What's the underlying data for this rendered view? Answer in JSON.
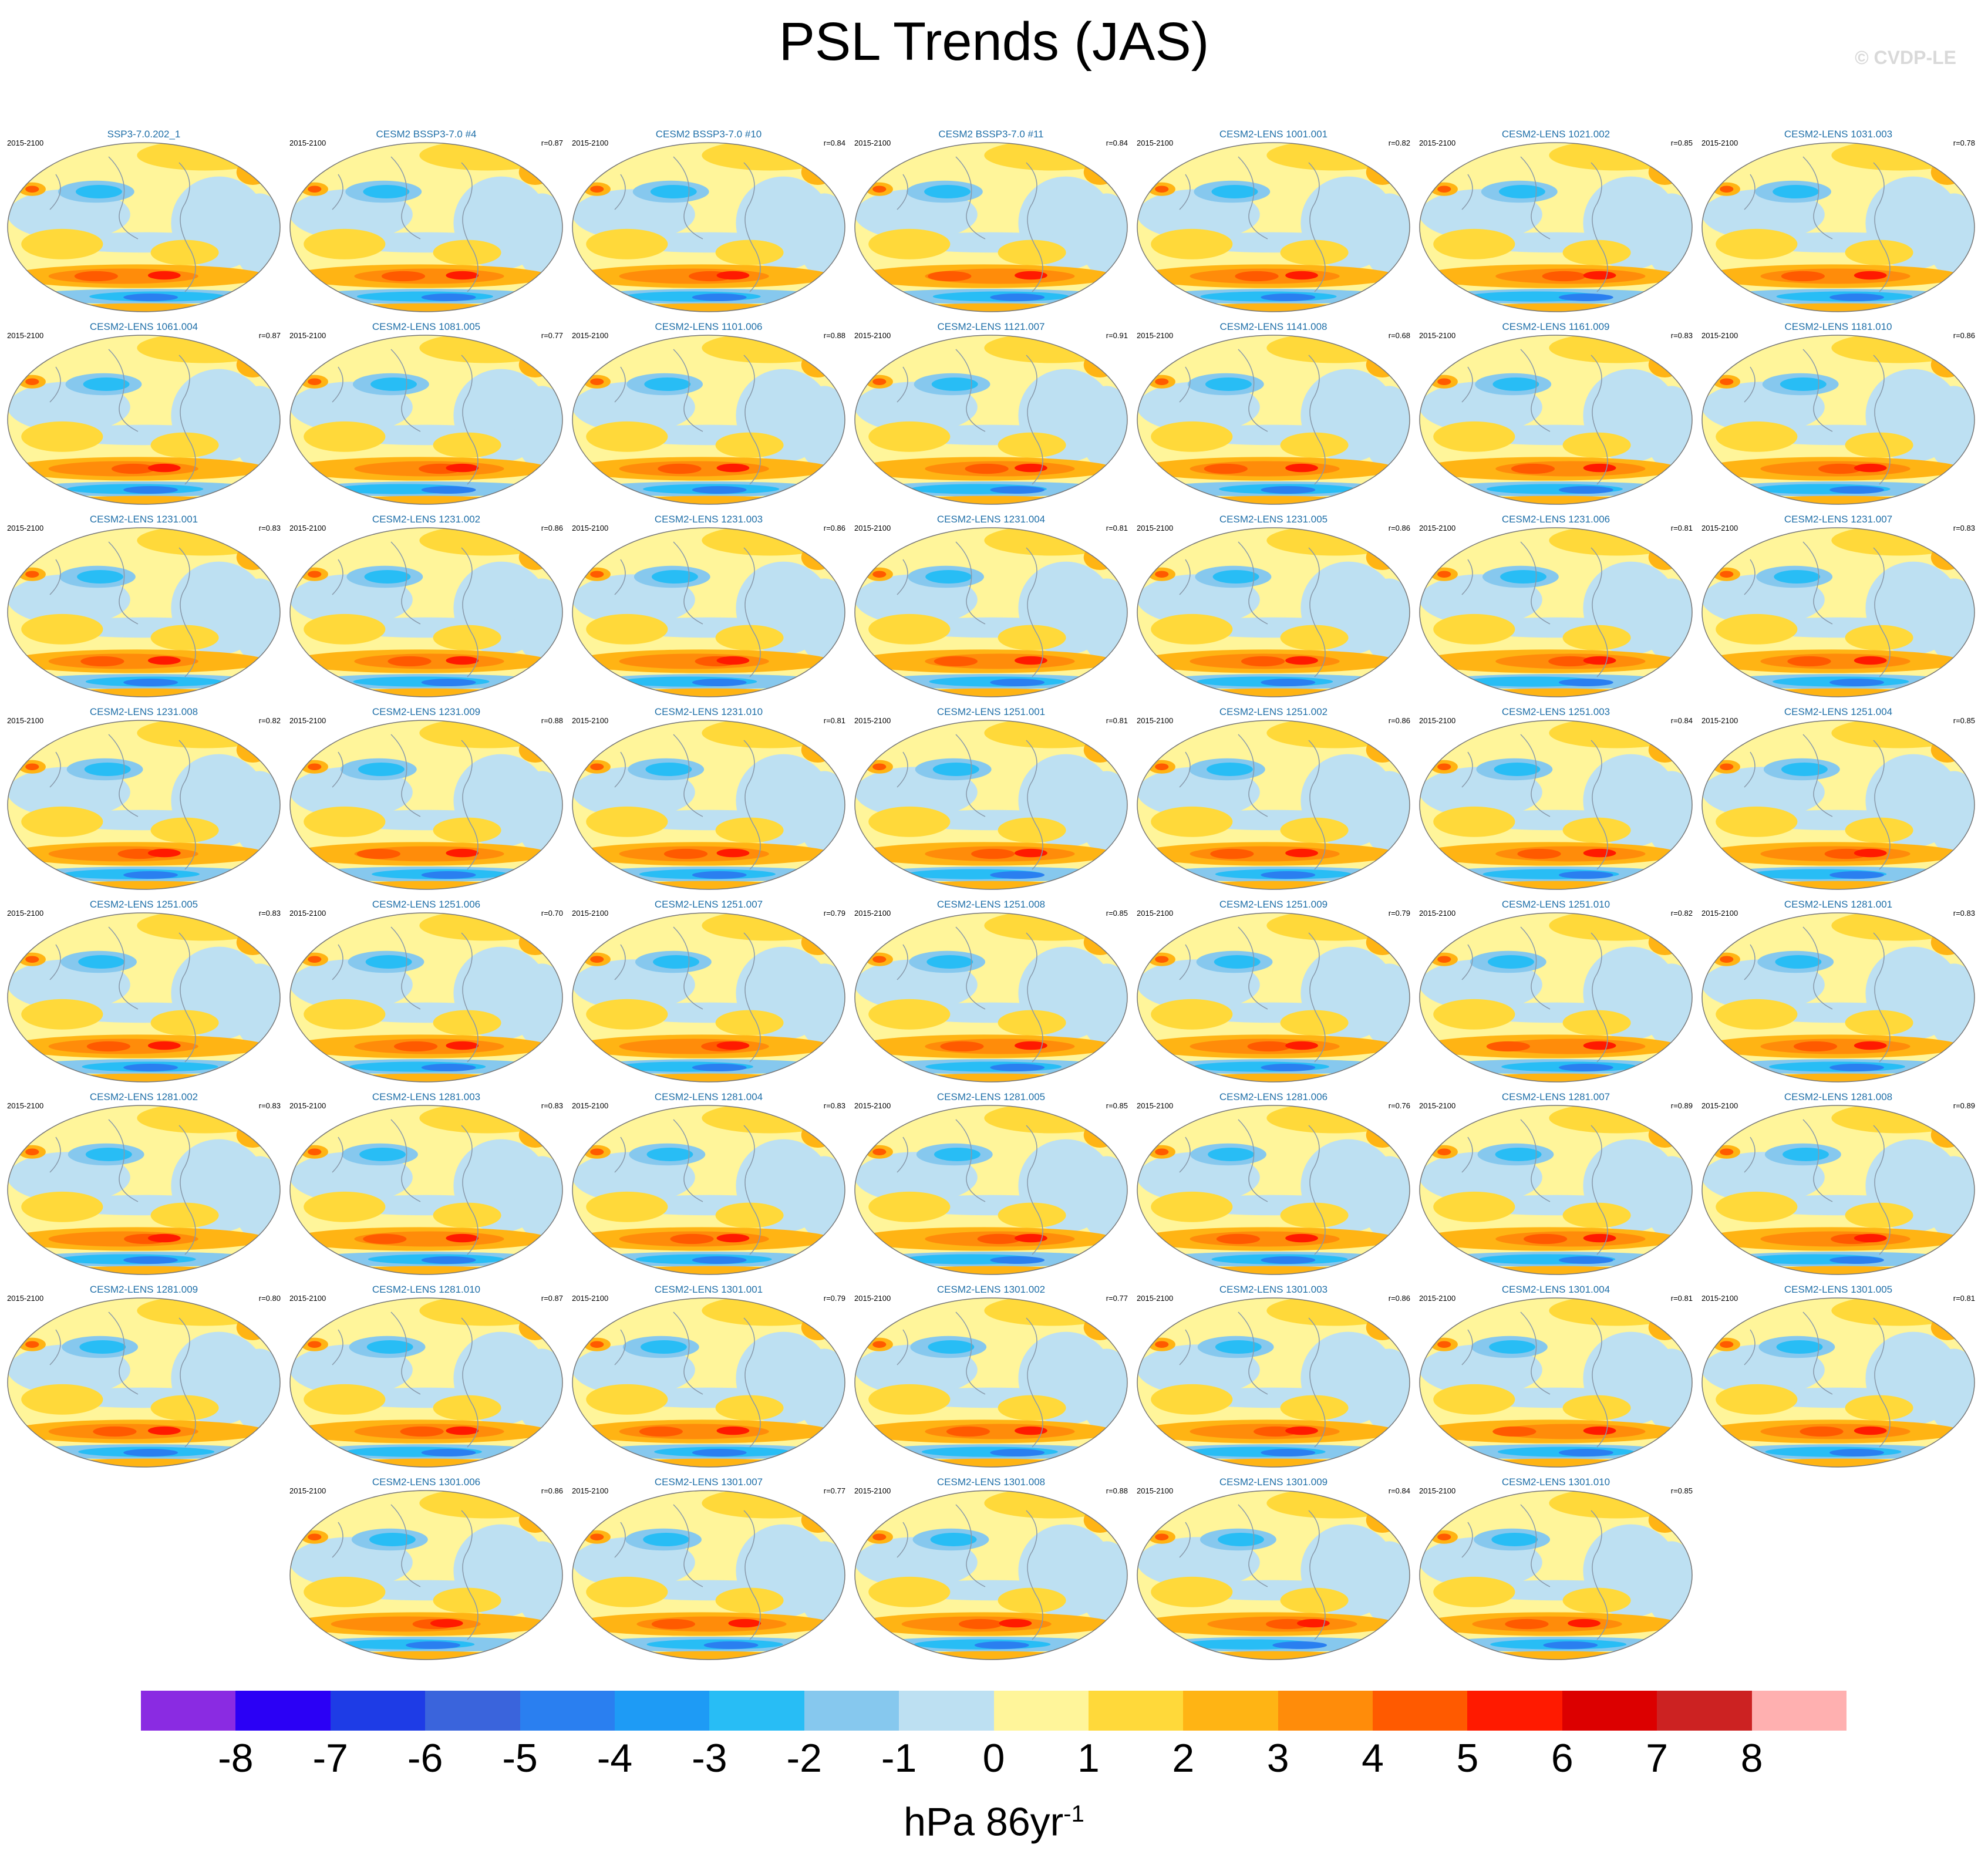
{
  "title": "PSL Trends (JAS)",
  "watermark": "© CVDP-LE",
  "chart_data": {
    "type": "heatmap",
    "title": "PSL Trends (JAS)",
    "period": "2015-2100",
    "panels": [
      {
        "title": "SSP3-7.0.202_1",
        "r": ""
      },
      {
        "title": "CESM2 BSSP3-7.0 #4",
        "r": "r=0.87"
      },
      {
        "title": "CESM2 BSSP3-7.0 #10",
        "r": "r=0.84"
      },
      {
        "title": "CESM2 BSSP3-7.0 #11",
        "r": "r=0.84"
      },
      {
        "title": "CESM2-LENS 1001.001",
        "r": "r=0.82"
      },
      {
        "title": "CESM2-LENS 1021.002",
        "r": "r=0.85"
      },
      {
        "title": "CESM2-LENS 1031.003",
        "r": "r=0.78"
      },
      {
        "title": "CESM2-LENS 1061.004",
        "r": "r=0.87"
      },
      {
        "title": "CESM2-LENS 1081.005",
        "r": "r=0.77"
      },
      {
        "title": "CESM2-LENS 1101.006",
        "r": "r=0.88"
      },
      {
        "title": "CESM2-LENS 1121.007",
        "r": "r=0.91"
      },
      {
        "title": "CESM2-LENS 1141.008",
        "r": "r=0.68"
      },
      {
        "title": "CESM2-LENS 1161.009",
        "r": "r=0.83"
      },
      {
        "title": "CESM2-LENS 1181.010",
        "r": "r=0.86"
      },
      {
        "title": "CESM2-LENS 1231.001",
        "r": "r=0.83"
      },
      {
        "title": "CESM2-LENS 1231.002",
        "r": "r=0.86"
      },
      {
        "title": "CESM2-LENS 1231.003",
        "r": "r=0.86"
      },
      {
        "title": "CESM2-LENS 1231.004",
        "r": "r=0.81"
      },
      {
        "title": "CESM2-LENS 1231.005",
        "r": "r=0.86"
      },
      {
        "title": "CESM2-LENS 1231.006",
        "r": "r=0.81"
      },
      {
        "title": "CESM2-LENS 1231.007",
        "r": "r=0.83"
      },
      {
        "title": "CESM2-LENS 1231.008",
        "r": "r=0.82"
      },
      {
        "title": "CESM2-LENS 1231.009",
        "r": "r=0.88"
      },
      {
        "title": "CESM2-LENS 1231.010",
        "r": "r=0.81"
      },
      {
        "title": "CESM2-LENS 1251.001",
        "r": "r=0.81"
      },
      {
        "title": "CESM2-LENS 1251.002",
        "r": "r=0.86"
      },
      {
        "title": "CESM2-LENS 1251.003",
        "r": "r=0.84"
      },
      {
        "title": "CESM2-LENS 1251.004",
        "r": "r=0.85"
      },
      {
        "title": "CESM2-LENS 1251.005",
        "r": "r=0.83"
      },
      {
        "title": "CESM2-LENS 1251.006",
        "r": "r=0.70"
      },
      {
        "title": "CESM2-LENS 1251.007",
        "r": "r=0.79"
      },
      {
        "title": "CESM2-LENS 1251.008",
        "r": "r=0.85"
      },
      {
        "title": "CESM2-LENS 1251.009",
        "r": "r=0.79"
      },
      {
        "title": "CESM2-LENS 1251.010",
        "r": "r=0.82"
      },
      {
        "title": "CESM2-LENS 1281.001",
        "r": "r=0.83"
      },
      {
        "title": "CESM2-LENS 1281.002",
        "r": "r=0.83"
      },
      {
        "title": "CESM2-LENS 1281.003",
        "r": "r=0.83"
      },
      {
        "title": "CESM2-LENS 1281.004",
        "r": "r=0.83"
      },
      {
        "title": "CESM2-LENS 1281.005",
        "r": "r=0.85"
      },
      {
        "title": "CESM2-LENS 1281.006",
        "r": "r=0.76"
      },
      {
        "title": "CESM2-LENS 1281.007",
        "r": "r=0.89"
      },
      {
        "title": "CESM2-LENS 1281.008",
        "r": "r=0.89"
      },
      {
        "title": "CESM2-LENS 1281.009",
        "r": "r=0.80"
      },
      {
        "title": "CESM2-LENS 1281.010",
        "r": "r=0.87"
      },
      {
        "title": "CESM2-LENS 1301.001",
        "r": "r=0.79"
      },
      {
        "title": "CESM2-LENS 1301.002",
        "r": "r=0.77"
      },
      {
        "title": "CESM2-LENS 1301.003",
        "r": "r=0.86"
      },
      {
        "title": "CESM2-LENS 1301.004",
        "r": "r=0.81"
      },
      {
        "title": "CESM2-LENS 1301.005",
        "r": "r=0.81"
      },
      {
        "title": "CESM2-LENS 1301.006",
        "r": "r=0.86"
      },
      {
        "title": "CESM2-LENS 1301.007",
        "r": "r=0.77"
      },
      {
        "title": "CESM2-LENS 1301.008",
        "r": "r=0.88"
      },
      {
        "title": "CESM2-LENS 1301.009",
        "r": "r=0.84"
      },
      {
        "title": "CESM2-LENS 1301.010",
        "r": "r=0.85"
      }
    ],
    "colorbar": {
      "ticks": [
        "-8",
        "-7",
        "-6",
        "-5",
        "-4",
        "-3",
        "-2",
        "-1",
        "0",
        "1",
        "2",
        "3",
        "4",
        "5",
        "6",
        "7",
        "8"
      ],
      "colors": [
        "#8a2be2",
        "#2b00f5",
        "#1e3ce6",
        "#3a64dc",
        "#2a7ff0",
        "#1e9bf5",
        "#28bdf5",
        "#86c8ee",
        "#bde0f2",
        "#fff59a",
        "#ffd93a",
        "#ffb414",
        "#ff8c0a",
        "#ff5a00",
        "#ff1a00",
        "#dc0000",
        "#cc2222",
        "#ffb0b0"
      ],
      "unit_text": "hPa 86yr",
      "unit_exp": "-1"
    }
  }
}
